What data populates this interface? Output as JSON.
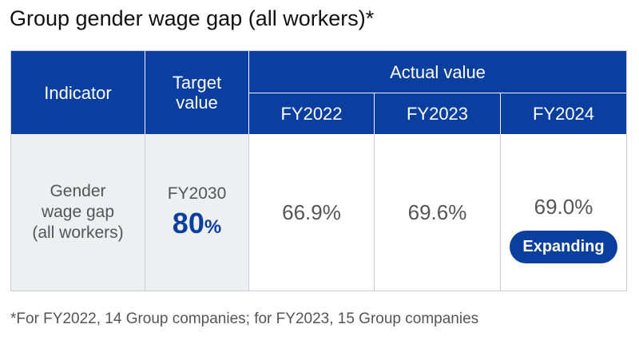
{
  "title": "Group gender wage gap (all workers)*",
  "table": {
    "header": {
      "indicator": "Indicator",
      "target": "Target value",
      "actual": "Actual value",
      "years": [
        "FY2022",
        "FY2023",
        "FY2024"
      ]
    },
    "rows": [
      {
        "indicator": "Gender wage gap (all workers)",
        "target": {
          "year": "FY2030",
          "value": "80",
          "unit": "%"
        },
        "values": [
          "66.9%",
          "69.6%",
          "69.0%"
        ],
        "badge": "Expanding"
      }
    ]
  },
  "footnote": "*For FY2022, 14 Group companies; for FY2023, 15 Group companies"
}
